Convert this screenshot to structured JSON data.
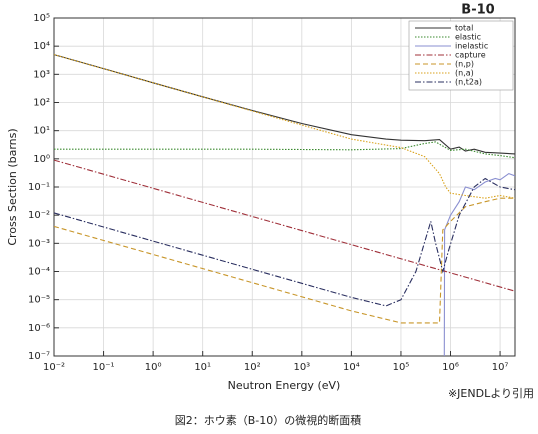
{
  "chart_data": {
    "type": "line",
    "title": "B-10",
    "xlabel": "Neutron Energy (eV)",
    "ylabel": "Cross Section (barns)",
    "note": "※JENDLより引用",
    "caption": "図2：ホウ素（B-10）の微視的断面積",
    "log_x": true,
    "log_y": true,
    "grid": true,
    "legend": "upper right",
    "xlim": [
      0.01,
      20000000
    ],
    "ylim": [
      1e-07,
      100000
    ],
    "xticks": [
      {
        "value": 0.01,
        "label": "10⁻²"
      },
      {
        "value": 0.1,
        "label": "10⁻¹"
      },
      {
        "value": 1,
        "label": "10⁰"
      },
      {
        "value": 10,
        "label": "10¹"
      },
      {
        "value": 100,
        "label": "10²"
      },
      {
        "value": 1000,
        "label": "10³"
      },
      {
        "value": 10000,
        "label": "10⁴"
      },
      {
        "value": 100000,
        "label": "10⁵"
      },
      {
        "value": 1000000,
        "label": "10⁶"
      },
      {
        "value": 10000000,
        "label": "10⁷"
      }
    ],
    "yticks": [
      {
        "value": 1e-07,
        "label": "10⁻⁷"
      },
      {
        "value": 1e-06,
        "label": "10⁻⁶"
      },
      {
        "value": 1e-05,
        "label": "10⁻⁵"
      },
      {
        "value": 0.0001,
        "label": "10⁻⁴"
      },
      {
        "value": 0.001,
        "label": "10⁻³"
      },
      {
        "value": 0.01,
        "label": "10⁻²"
      },
      {
        "value": 0.1,
        "label": "10⁻¹"
      },
      {
        "value": 1,
        "label": "10⁰"
      },
      {
        "value": 10,
        "label": "10¹"
      },
      {
        "value": 100,
        "label": "10²"
      },
      {
        "value": 1000,
        "label": "10³"
      },
      {
        "value": 10000,
        "label": "10⁴"
      },
      {
        "value": 100000,
        "label": "10⁵"
      }
    ],
    "series": [
      {
        "name": "total",
        "color": "#333333",
        "dash": "solid",
        "x": [
          0.01,
          0.1,
          1,
          10,
          100,
          1000,
          10000,
          50000,
          100000,
          300000,
          600000,
          1000000,
          1500000,
          2000000,
          3000000,
          5000000,
          10000000,
          20000000
        ],
        "values": [
          5000,
          1600,
          500,
          160,
          52,
          18,
          7.2,
          5,
          4.6,
          4.4,
          4.8,
          2.2,
          2.6,
          1.9,
          2.2,
          1.7,
          1.6,
          1.5
        ]
      },
      {
        "name": "elastic",
        "color": "#3a8a2e",
        "dash": "dotted",
        "x": [
          0.01,
          1,
          100,
          10000,
          100000,
          300000,
          500000,
          1000000,
          2000000,
          5000000,
          10000000,
          20000000
        ],
        "values": [
          2.2,
          2.2,
          2.2,
          2.1,
          2.3,
          3.5,
          4,
          2,
          2.2,
          1.5,
          1.3,
          1.1
        ]
      },
      {
        "name": "inelastic",
        "color": "#8a8fd0",
        "dash": "solid",
        "x": [
          750000,
          760000,
          1000000,
          1500000,
          2000000,
          3000000,
          5000000,
          8000000,
          10000000,
          15000000,
          20000000
        ],
        "values": [
          1e-07,
          0.003,
          0.01,
          0.03,
          0.1,
          0.08,
          0.15,
          0.2,
          0.18,
          0.3,
          0.25
        ]
      },
      {
        "name": "capture",
        "color": "#a0303a",
        "dash": "dashdot",
        "x": [
          0.01,
          20000000
        ],
        "values": [
          0.9,
          2e-05
        ]
      },
      {
        "name": "(n,p)",
        "color": "#c8962a",
        "dash": "dashed",
        "x": [
          0.01,
          1,
          100,
          10000,
          100000,
          400000,
          600000,
          700000,
          1000000,
          2000000,
          5000000,
          10000000,
          20000000
        ],
        "values": [
          0.004,
          0.0004,
          4e-05,
          4e-06,
          1.5e-06,
          1.5e-06,
          1.5e-06,
          0.003,
          0.006,
          0.02,
          0.03,
          0.04,
          0.04
        ]
      },
      {
        "name": "(n,a)",
        "color": "#d9a21c",
        "dash": "dotted",
        "x": [
          0.01,
          1,
          100,
          10000,
          100000,
          300000,
          600000,
          800000,
          1000000,
          2000000,
          5000000,
          10000000,
          20000000
        ],
        "values": [
          5000,
          500,
          50,
          5,
          2.5,
          1.2,
          0.3,
          0.1,
          0.06,
          0.05,
          0.04,
          0.05,
          0.04
        ]
      },
      {
        "name": "(n,t2a)",
        "color": "#2a2f60",
        "dash": "dashdot",
        "x": [
          0.01,
          1,
          100,
          10000,
          50000,
          100000,
          200000,
          400000,
          500000,
          700000,
          900000,
          1500000,
          3000000,
          5000000,
          10000000,
          20000000
        ],
        "values": [
          0.012,
          0.0012,
          0.00012,
          1.2e-05,
          6e-06,
          1e-05,
          0.0001,
          0.006,
          0.001,
          0.0001,
          0.0005,
          0.01,
          0.1,
          0.2,
          0.1,
          0.08
        ]
      }
    ]
  }
}
